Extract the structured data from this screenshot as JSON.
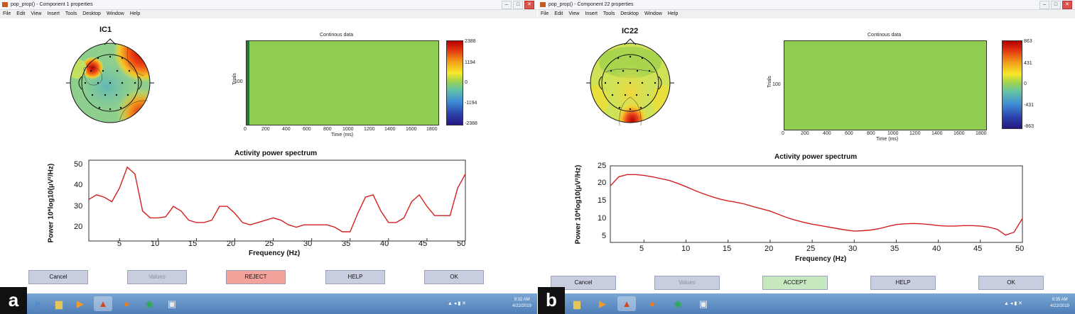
{
  "panels": [
    {
      "letter": "a",
      "window_title": "pop_prop() - Component 1 properties",
      "menu": [
        "File",
        "Edit",
        "View",
        "Insert",
        "Tools",
        "Desktop",
        "Window",
        "Help"
      ],
      "ic_title": "IC1",
      "erp": {
        "title": "Continous data",
        "ylabel": "Trials",
        "ytick": "100",
        "xlabel": "Time (ms)",
        "xticks": [
          "0",
          "200",
          "400",
          "600",
          "800",
          "1000",
          "1200",
          "1400",
          "1600",
          "1800"
        ],
        "colorbar_ticks": [
          "2388",
          "1194",
          "0",
          "-1194",
          "-2388"
        ]
      },
      "spectrum": {
        "title": "Activity power spectrum",
        "ylabel": "Power 10*log10(μV²/Hz)",
        "xlabel": "Frequency (Hz)",
        "xticks": [
          "5",
          "10",
          "15",
          "20",
          "25",
          "30",
          "35",
          "40",
          "45",
          "50"
        ],
        "yticks": [
          "50",
          "40",
          "30",
          "20"
        ]
      },
      "buttons": [
        {
          "label": "Cancel",
          "state": "normal"
        },
        {
          "label": "Values",
          "state": "disabled"
        },
        {
          "label": "REJECT",
          "state": "reject"
        },
        {
          "label": "HELP",
          "state": "normal"
        },
        {
          "label": "OK",
          "state": "normal"
        }
      ],
      "clock": {
        "time": "9:32 AM",
        "date": "4/22/2019"
      }
    },
    {
      "letter": "b",
      "window_title": "pop_prop() - Component 22 properties",
      "menu": [
        "File",
        "Edit",
        "View",
        "Insert",
        "Tools",
        "Desktop",
        "Window",
        "Help"
      ],
      "ic_title": "IC22",
      "erp": {
        "title": "Continous data",
        "ylabel": "Trials",
        "ytick": "100",
        "xlabel": "Time (ms)",
        "xticks": [
          "0",
          "200",
          "400",
          "600",
          "800",
          "1000",
          "1200",
          "1400",
          "1600",
          "1800"
        ],
        "colorbar_ticks": [
          "863",
          "431",
          "0",
          "-431",
          "-863"
        ]
      },
      "spectrum": {
        "title": "Activity power spectrum",
        "ylabel": "Power 10*log10(μV²/Hz)",
        "xlabel": "Frequency (Hz)",
        "xticks": [
          "5",
          "10",
          "15",
          "20",
          "25",
          "30",
          "35",
          "40",
          "45",
          "50"
        ],
        "yticks": [
          "25",
          "20",
          "15",
          "10",
          "5"
        ]
      },
      "buttons": [
        {
          "label": "Cancel",
          "state": "normal"
        },
        {
          "label": "Values",
          "state": "disabled"
        },
        {
          "label": "ACCEPT",
          "state": "accept"
        },
        {
          "label": "HELP",
          "state": "normal"
        },
        {
          "label": "OK",
          "state": "normal"
        }
      ],
      "clock": {
        "time": "9:35 AM",
        "date": "4/22/2019"
      }
    }
  ],
  "chart_data": [
    {
      "type": "line",
      "title": "Activity power spectrum",
      "xlabel": "Frequency (Hz)",
      "ylabel": "Power 10*log10(μV²/Hz)",
      "xlim": [
        1,
        50
      ],
      "ylim": [
        15,
        50
      ],
      "series": [
        {
          "color": "#d41f1f",
          "x": [
            1,
            2,
            3,
            4,
            5,
            6,
            7,
            8,
            9,
            10,
            11,
            12,
            13,
            14,
            15,
            16,
            17,
            18,
            19,
            20,
            21,
            22,
            23,
            24,
            25,
            26,
            27,
            28,
            29,
            30,
            31,
            32,
            33,
            34,
            35,
            36,
            37,
            38,
            39,
            40,
            41,
            42,
            43,
            44,
            45,
            46,
            47,
            48,
            49,
            50
          ],
          "y": [
            33,
            35,
            34,
            32,
            38,
            47,
            44,
            28,
            25,
            25,
            25.5,
            30,
            28,
            24,
            23,
            23,
            24,
            30,
            30,
            27,
            23,
            22,
            23,
            24,
            25,
            24,
            22,
            21,
            22,
            22,
            22,
            22,
            21,
            19,
            19,
            27,
            34,
            35,
            28,
            23,
            23,
            25,
            32,
            35,
            30,
            26,
            26,
            26,
            38,
            44
          ]
        }
      ]
    },
    {
      "type": "line",
      "title": "Activity power spectrum",
      "xlabel": "Frequency (Hz)",
      "ylabel": "Power 10*log10(μV²/Hz)",
      "xlim": [
        1,
        50
      ],
      "ylim": [
        4,
        25
      ],
      "series": [
        {
          "color": "#d41f1f",
          "x": [
            1,
            2,
            3,
            4,
            5,
            6,
            7,
            8,
            9,
            10,
            11,
            12,
            13,
            14,
            15,
            16,
            17,
            18,
            19,
            20,
            21,
            22,
            23,
            24,
            25,
            26,
            27,
            28,
            29,
            30,
            31,
            32,
            33,
            34,
            35,
            36,
            37,
            38,
            39,
            40,
            41,
            42,
            43,
            44,
            45,
            46,
            47,
            48,
            49,
            50
          ],
          "y": [
            19.5,
            22,
            22.6,
            22.6,
            22.4,
            22,
            21.5,
            21,
            20.2,
            19.3,
            18.3,
            17.4,
            16.6,
            15.9,
            15.4,
            15,
            14.5,
            13.8,
            13.2,
            12.6,
            11.7,
            10.8,
            10.1,
            9.5,
            9,
            8.6,
            8.2,
            7.8,
            7.4,
            7.1,
            7.2,
            7.4,
            7.8,
            8.4,
            8.9,
            9.1,
            9.2,
            9.1,
            8.9,
            8.6,
            8.5,
            8.5,
            8.6,
            8.6,
            8.5,
            8.2,
            7.6,
            6,
            6.8,
            10.6
          ]
        }
      ]
    }
  ]
}
